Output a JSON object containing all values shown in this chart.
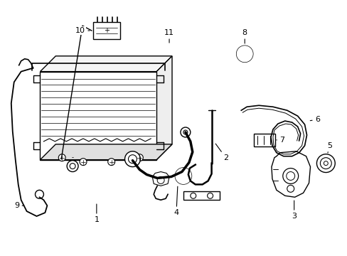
{
  "background_color": "#ffffff",
  "line_color": "#000000",
  "figsize": [
    4.89,
    3.6
  ],
  "dpi": 100
}
